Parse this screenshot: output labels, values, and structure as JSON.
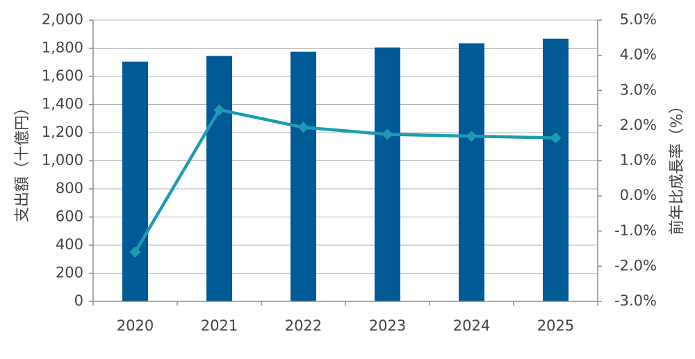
{
  "chart_data": {
    "type": "bar+line",
    "categories": [
      "2020",
      "2021",
      "2022",
      "2023",
      "2024",
      "2025"
    ],
    "series": [
      {
        "type": "bar",
        "axis": "left",
        "values": [
          1705,
          1745,
          1775,
          1805,
          1835,
          1868
        ]
      },
      {
        "type": "line",
        "axis": "right",
        "values": [
          -1.6,
          2.45,
          1.95,
          1.75,
          1.7,
          1.65
        ]
      }
    ],
    "ylabel": "支出額（十億円）",
    "y2label": "前年比成長率（%）",
    "ylim": [
      0,
      2000
    ],
    "y2lim": [
      -3.0,
      5.0
    ],
    "yticks": [
      "0",
      "200",
      "400",
      "600",
      "800",
      "1,000",
      "1,200",
      "1,400",
      "1,600",
      "1,800",
      "2,000"
    ],
    "y2ticks": [
      "-3.0%",
      "-2.0%",
      "-1.0%",
      "0.0%",
      "1.0%",
      "2.0%",
      "3.0%",
      "4.0%",
      "5.0%"
    ],
    "grid": true,
    "colors": {
      "bar": "#005a96",
      "line": "#1e9bb4",
      "grid": "#b3b3b3",
      "axis": "#8c8c8c"
    }
  }
}
